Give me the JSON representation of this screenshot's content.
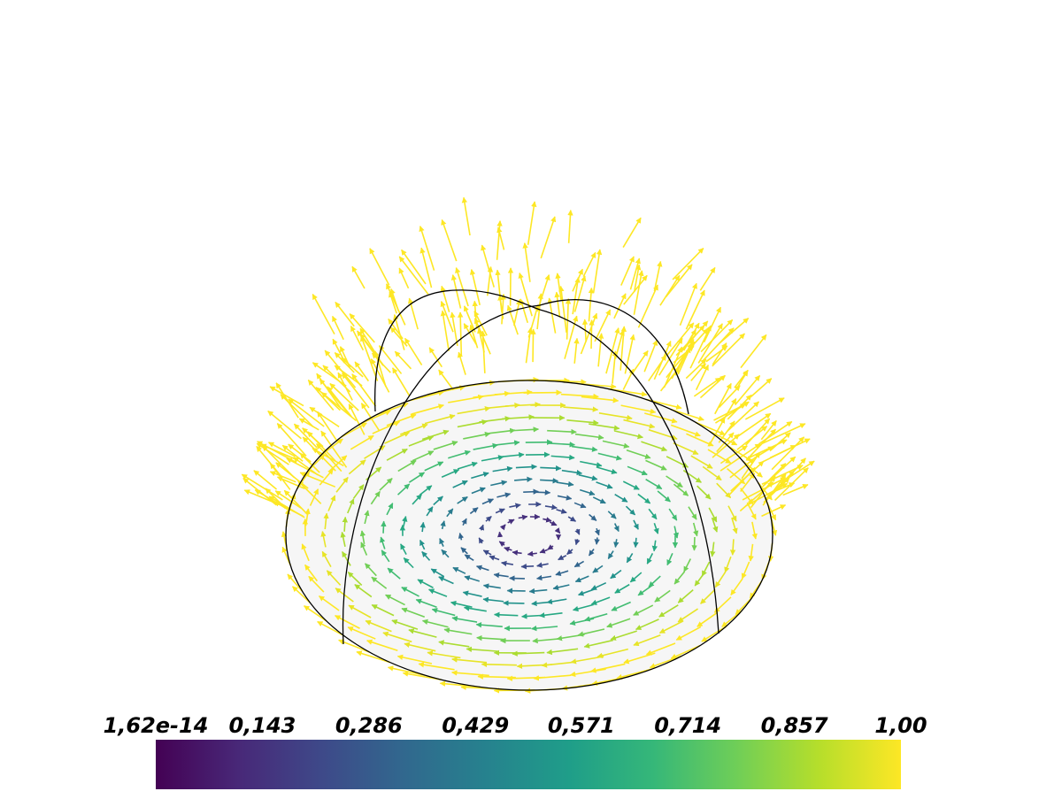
{
  "chart_data": {
    "type": "colorbar",
    "colormap": [
      "#440154",
      "#482878",
      "#3e4989",
      "#31688e",
      "#26828e",
      "#1f9e89",
      "#35b779",
      "#6ece58",
      "#b5de2b",
      "#fde725"
    ],
    "xlim": [
      1.62e-14,
      1
    ],
    "xticks": [
      {
        "value": 1.62e-14,
        "label": "1,62e-14"
      },
      {
        "value": 0.143,
        "label": "0,143"
      },
      {
        "value": 0.286,
        "label": "0,286"
      },
      {
        "value": 0.429,
        "label": "0,429"
      },
      {
        "value": 0.571,
        "label": "0,571"
      },
      {
        "value": 0.714,
        "label": "0,714"
      },
      {
        "value": 0.857,
        "label": "0,857"
      },
      {
        "value": 1,
        "label": "1,00"
      }
    ]
  }
}
